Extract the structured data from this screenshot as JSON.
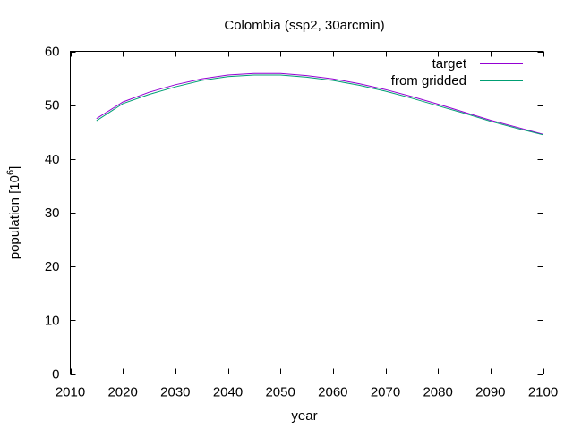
{
  "chart_data": {
    "type": "line",
    "title": "Colombia (ssp2, 30arcmin)",
    "xlabel": "year",
    "ylabel_text": "population [10",
    "ylabel_sup": "6",
    "ylabel_close": "]",
    "xlim": [
      2010,
      2100
    ],
    "ylim": [
      0,
      60
    ],
    "xticks": [
      2010,
      2020,
      2030,
      2040,
      2050,
      2060,
      2070,
      2080,
      2090,
      2100
    ],
    "yticks": [
      0,
      10,
      20,
      30,
      40,
      50,
      60
    ],
    "grid": false,
    "legend_position": "top-right",
    "x": [
      2015,
      2020,
      2025,
      2030,
      2035,
      2040,
      2045,
      2050,
      2055,
      2060,
      2065,
      2070,
      2075,
      2080,
      2085,
      2090,
      2095,
      2100
    ],
    "series": [
      {
        "name": "target",
        "color": "#9400d3",
        "values": [
          47.5,
          50.6,
          52.4,
          53.8,
          54.9,
          55.6,
          55.9,
          55.9,
          55.5,
          54.9,
          54.0,
          52.9,
          51.6,
          50.2,
          48.7,
          47.2,
          45.9,
          44.6
        ]
      },
      {
        "name": "from gridded",
        "color": "#009e73",
        "values": [
          47.1,
          50.3,
          52.0,
          53.4,
          54.6,
          55.3,
          55.6,
          55.6,
          55.2,
          54.6,
          53.7,
          52.6,
          51.3,
          49.9,
          48.5,
          47.0,
          45.7,
          44.5
        ]
      }
    ]
  }
}
